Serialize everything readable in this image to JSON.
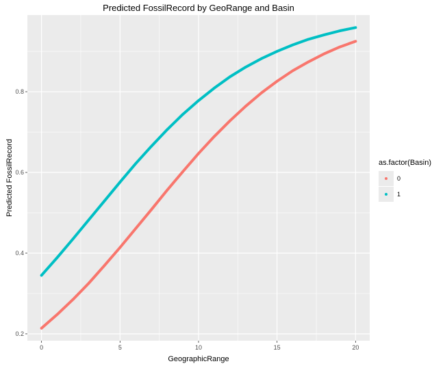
{
  "chart_data": {
    "type": "line",
    "title": "Predicted FossilRecord by GeoRange and Basin",
    "xlabel": "GeographicRange",
    "ylabel": "Predicted FossilRecord",
    "xlim": [
      -0.9,
      20.9
    ],
    "ylim": [
      0.183,
      0.99
    ],
    "xticks": [
      0,
      5,
      10,
      15,
      20
    ],
    "xtick_labels": [
      "0",
      "5",
      "10",
      "15",
      "20"
    ],
    "yticks": [
      0.2,
      0.4,
      0.6,
      0.8
    ],
    "ytick_labels": [
      "0.2",
      "0.4",
      "0.6",
      "0.8"
    ],
    "grid": true,
    "legend": {
      "title": "as.factor(Basin)",
      "position": "right"
    },
    "x": [
      0,
      1,
      2,
      3,
      4,
      5,
      6,
      7,
      8,
      9,
      10,
      11,
      12,
      13,
      14,
      15,
      16,
      17,
      18,
      19,
      20
    ],
    "series": [
      {
        "name": "0",
        "color": "#F8766D",
        "values": [
          0.214,
          0.248,
          0.285,
          0.325,
          0.369,
          0.414,
          0.461,
          0.508,
          0.556,
          0.602,
          0.647,
          0.689,
          0.728,
          0.764,
          0.797,
          0.826,
          0.852,
          0.874,
          0.894,
          0.911,
          0.925
        ]
      },
      {
        "name": "1",
        "color": "#00BFC4",
        "values": [
          0.345,
          0.389,
          0.435,
          0.482,
          0.529,
          0.576,
          0.622,
          0.665,
          0.706,
          0.744,
          0.778,
          0.809,
          0.837,
          0.861,
          0.882,
          0.9,
          0.916,
          0.93,
          0.941,
          0.951,
          0.959
        ]
      }
    ]
  }
}
